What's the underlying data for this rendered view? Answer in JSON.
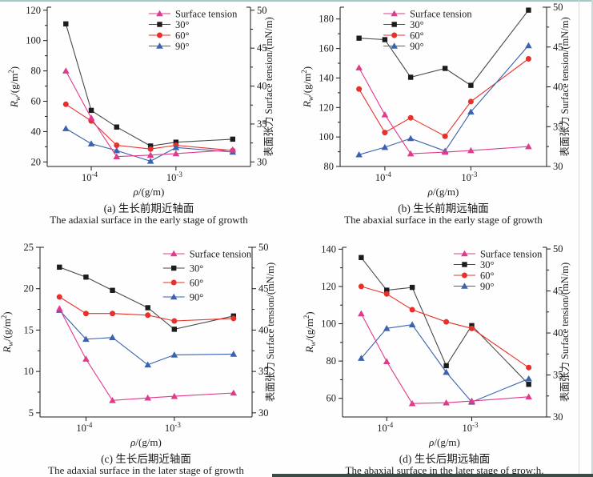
{
  "page": {
    "edge_colors": {
      "top_strip": "#9fc9c2",
      "right_strip": "#c8dbd7",
      "inner_edge_line": "#d9d9d9",
      "bottom_right_strip": "#3c4a46"
    },
    "text_color": "#1a1a1a",
    "background": "#fefefe"
  },
  "figure": {
    "x_axis_label": {
      "var": "ρ",
      "rest": "/(g/m)"
    },
    "left_axis_label": {
      "prefix": "R",
      "sub": "w",
      "rest1": "/(g/m",
      "sup": "2",
      "rest2": ")"
    },
    "right_axis_label": "表面张力 Surface tension/(mN/m)",
    "series_colors": {
      "surface_tension": "#e03a8c",
      "deg30_marker": "#1c1c1c",
      "deg30_line": "#4a4a4a",
      "deg60": "#e8302a",
      "deg90": "#3a62ad"
    }
  },
  "chart_data": [
    {
      "id": "a",
      "type": "line",
      "caption_zh": "(a) 生长前期近轴面",
      "caption_en": "The adaxial surface in the early stage of growth",
      "x_log10": [
        -4.3,
        -4,
        -3.7,
        -3.3,
        -3,
        -2.33
      ],
      "x_range_log10": [
        -4.52,
        -2.12
      ],
      "x_ticks": [
        {
          "log10": -4,
          "base": "10",
          "exp": "-4"
        },
        {
          "log10": -3,
          "base": "10",
          "exp": "-3"
        }
      ],
      "left_axis": {
        "range": [
          17,
          122
        ],
        "ticks": [
          20,
          40,
          60,
          80,
          100,
          120
        ],
        "minor_ticks": [
          30,
          50,
          70,
          90,
          110
        ]
      },
      "right_axis": {
        "range": [
          29.4,
          50.4
        ],
        "ticks": [
          30,
          35,
          40,
          45,
          50
        ],
        "minor_ticks": [
          32.5,
          37.5,
          42.5,
          47.5
        ]
      },
      "legend": {
        "items": [
          "Surface tension",
          "30°",
          "60°",
          "90°"
        ],
        "x_frac": 0.5,
        "row_step": 13.5
      },
      "series": [
        {
          "name": "30°",
          "axis": "left",
          "marker": "square",
          "color": "#1c1c1c",
          "line_color": "#4a4a4a",
          "values": [
            111,
            54,
            43,
            30.5,
            33,
            35
          ]
        },
        {
          "name": "60°",
          "axis": "left",
          "marker": "circle",
          "color": "#e8302a",
          "values": [
            58,
            47,
            31,
            28.5,
            31,
            27.5
          ]
        },
        {
          "name": "90°",
          "axis": "left",
          "marker": "triangle",
          "color": "#3a62ad",
          "values": [
            42,
            32,
            27.5,
            20.5,
            29.5,
            26.5
          ]
        },
        {
          "name": "Surface tension",
          "axis": "right",
          "marker": "triangle",
          "color": "#e03a8c",
          "values": [
            42,
            35.8,
            30.7,
            30.9,
            31.1,
            31.6
          ]
        }
      ]
    },
    {
      "id": "b",
      "type": "line",
      "caption_zh": "(b) 生长前期远轴面",
      "caption_en": "The abaxial surface in the early stage of growth",
      "x_log10": [
        -4.3,
        -4,
        -3.7,
        -3.3,
        -3,
        -2.33
      ],
      "x_range_log10": [
        -4.52,
        -2.12
      ],
      "x_ticks": [
        {
          "log10": -4,
          "base": "10",
          "exp": "-4"
        },
        {
          "log10": -3,
          "base": "10",
          "exp": "-3"
        }
      ],
      "left_axis": {
        "range": [
          80,
          188
        ],
        "ticks": [
          80,
          100,
          120,
          140,
          160,
          180
        ],
        "minor_ticks": [
          90,
          110,
          130,
          150,
          170
        ]
      },
      "right_axis": {
        "range": [
          30,
          50
        ],
        "ticks": [
          30,
          35,
          40,
          45,
          50
        ],
        "minor_ticks": [
          32.5,
          37.5,
          42.5,
          47.5
        ]
      },
      "legend": {
        "items": [
          "Surface tension",
          "30°",
          "60°",
          "90°"
        ],
        "x_frac": 0.21,
        "row_step": 13.5
      },
      "series": [
        {
          "name": "30°",
          "axis": "left",
          "marker": "square",
          "color": "#1c1c1c",
          "line_color": "#4a4a4a",
          "values": [
            167,
            166,
            140.5,
            146.5,
            135,
            186
          ]
        },
        {
          "name": "60°",
          "axis": "left",
          "marker": "circle",
          "color": "#e8302a",
          "values": [
            132.5,
            103,
            113,
            100.5,
            124,
            153
          ]
        },
        {
          "name": "90°",
          "axis": "left",
          "marker": "triangle",
          "color": "#3a62ad",
          "values": [
            88,
            93,
            99,
            90.5,
            117,
            162
          ]
        },
        {
          "name": "Surface tension",
          "axis": "right",
          "marker": "triangle",
          "color": "#e03a8c",
          "values": [
            42.4,
            36.5,
            31.6,
            31.8,
            32.0,
            32.5
          ]
        }
      ]
    },
    {
      "id": "c",
      "type": "line",
      "caption_zh": "(c) 生长后期近轴面",
      "caption_en": "The adaxial surface in the later stage of growth",
      "x_log10": [
        -4.3,
        -4,
        -3.7,
        -3.3,
        -3,
        -2.33
      ],
      "x_range_log10": [
        -4.52,
        -2.12
      ],
      "x_ticks": [
        {
          "log10": -4,
          "base": "10",
          "exp": "-4"
        },
        {
          "log10": -3,
          "base": "10",
          "exp": "-3"
        }
      ],
      "left_axis": {
        "range": [
          4.5,
          25
        ],
        "ticks": [
          5,
          10,
          15,
          20,
          25
        ],
        "minor_ticks": [
          7.5,
          12.5,
          17.5,
          22.5
        ]
      },
      "right_axis": {
        "range": [
          29.5,
          50
        ],
        "ticks": [
          30,
          35,
          40,
          45,
          50
        ],
        "minor_ticks": [
          32.5,
          37.5,
          42.5,
          47.5
        ]
      },
      "legend": {
        "items": [
          "Surface tension",
          "30°",
          "60°",
          "90°"
        ],
        "x_frac": 0.58,
        "row_step": 18
      },
      "series": [
        {
          "name": "30°",
          "axis": "left",
          "marker": "square",
          "color": "#1c1c1c",
          "line_color": "#4a4a4a",
          "values": [
            22.6,
            21.4,
            19.8,
            17.7,
            15.1,
            16.7
          ]
        },
        {
          "name": "60°",
          "axis": "left",
          "marker": "circle",
          "color": "#e8302a",
          "values": [
            19.0,
            17.0,
            17.0,
            16.8,
            16.1,
            16.4
          ]
        },
        {
          "name": "90°",
          "axis": "left",
          "marker": "triangle",
          "color": "#3a62ad",
          "values": [
            17.4,
            13.9,
            14.1,
            10.8,
            12.0,
            12.1
          ]
        },
        {
          "name": "Surface tension",
          "axis": "right",
          "marker": "triangle",
          "color": "#e03a8c",
          "values": [
            42.6,
            36.5,
            31.5,
            31.8,
            32.0,
            32.4
          ]
        }
      ]
    },
    {
      "id": "d",
      "type": "line",
      "caption_zh": "(d) 生长后期远轴面",
      "caption_en": "The abaxial surface in the later stage of grow:h.",
      "x_log10": [
        -4.3,
        -4,
        -3.7,
        -3.3,
        -3,
        -2.33
      ],
      "x_range_log10": [
        -4.52,
        -2.12
      ],
      "x_ticks": [
        {
          "log10": -4,
          "base": "10",
          "exp": "-4"
        },
        {
          "log10": -3,
          "base": "10",
          "exp": "-3"
        }
      ],
      "left_axis": {
        "range": [
          50,
          141
        ],
        "ticks": [
          60,
          80,
          100,
          120,
          140
        ],
        "minor_ticks": [
          70,
          90,
          110,
          130
        ]
      },
      "right_axis": {
        "range": [
          30,
          50.2
        ],
        "ticks": [
          30,
          35,
          40,
          45,
          50
        ],
        "minor_ticks": [
          32.5,
          37.5,
          42.5,
          47.5
        ]
      },
      "legend": {
        "items": [
          "Surface tension",
          "30°",
          "60°",
          "90°"
        ],
        "x_frac": 0.545,
        "row_step": 13.5
      },
      "series": [
        {
          "name": "30°",
          "axis": "left",
          "marker": "square",
          "color": "#1c1c1c",
          "line_color": "#4a4a4a",
          "values": [
            135.5,
            118,
            119.5,
            77.5,
            99,
            67.5
          ]
        },
        {
          "name": "60°",
          "axis": "left",
          "marker": "circle",
          "color": "#e8302a",
          "values": [
            120,
            116,
            107.5,
            101,
            97.5,
            76.5
          ]
        },
        {
          "name": "90°",
          "axis": "left",
          "marker": "triangle",
          "color": "#3a62ad",
          "values": [
            81.5,
            97.5,
            99.5,
            74,
            58,
            70.5
          ]
        },
        {
          "name": "Surface tension",
          "axis": "right",
          "marker": "triangle",
          "color": "#e03a8c",
          "values": [
            42.3,
            36.6,
            31.6,
            31.7,
            31.9,
            32.4
          ]
        }
      ]
    }
  ]
}
